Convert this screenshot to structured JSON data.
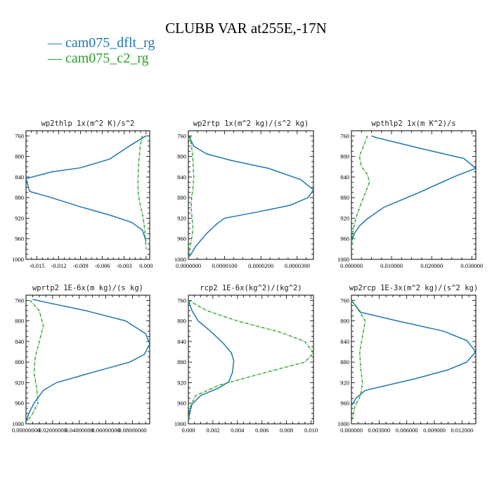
{
  "figure": {
    "title": "CLUBB VAR at255E,-17N",
    "legend": [
      {
        "label": "cam075_dflt_rg",
        "color": "#1f77b4"
      },
      {
        "label": "cam075_c2_rg",
        "color": "#2ca02c"
      }
    ]
  },
  "chart_data": [
    {
      "type": "line",
      "title": "wp2thlp  1x(m^2 K)/s^2",
      "xlim": [
        -0.0165,
        0.0005
      ],
      "ylim": [
        1000,
        750
      ],
      "y_ticks": [
        760,
        800,
        840,
        880,
        920,
        960,
        1000
      ],
      "x_ticks": [
        -0.015,
        -0.012,
        -0.009,
        -0.006,
        -0.003,
        0.0
      ],
      "x_tick_labels": [
        "-0.015",
        "-0.012",
        "-0.009",
        "-0.006",
        "-0.003",
        "0.000"
      ],
      "series": [
        {
          "color": "#1f77b4",
          "dash": false,
          "x": [
            -0.0,
            -0.002,
            -0.005,
            -0.009,
            -0.013,
            -0.0165,
            -0.016,
            -0.013,
            -0.009,
            -0.005,
            -0.002,
            -0.0005,
            0.0
          ],
          "y": [
            760,
            777,
            805,
            822,
            830,
            843,
            868,
            880,
            898,
            914,
            928,
            943,
            965
          ]
        },
        {
          "color": "#2ca02c",
          "dash": true,
          "x": [
            -0.0005,
            -0.0008,
            -0.001,
            -0.0011,
            -0.0011,
            -0.001,
            -0.0007,
            -0.0004,
            -0.0002,
            -0.0001,
            0.0
          ],
          "y": [
            760,
            780,
            810,
            840,
            860,
            880,
            900,
            920,
            940,
            960,
            980
          ]
        }
      ]
    },
    {
      "type": "line",
      "title": "wp2rtp  1x(m^2 kg)/(s^2 kg)",
      "xlim": [
        0,
        3.45e-05
      ],
      "ylim": [
        1000,
        750
      ],
      "y_ticks": [
        760,
        800,
        840,
        880,
        920,
        960,
        1000
      ],
      "x_ticks": [
        0.0,
        1e-05,
        2e-05,
        3e-05
      ],
      "x_tick_labels": [
        "0.0000000",
        "0.0000100",
        "0.0000200",
        "0.0000300"
      ],
      "series": [
        {
          "color": "#1f77b4",
          "dash": false,
          "x": [
            1e-07,
            1.5e-06,
            5e-06,
            1.2e-05,
            2.2e-05,
            3.1e-05,
            3.45e-05,
            3.3e-05,
            2.8e-05,
            1.9e-05,
            1e-05,
            8e-06,
            5e-06,
            2e-06,
            3e-07
          ],
          "y": [
            760,
            780,
            795,
            808,
            823,
            845,
            865,
            880,
            895,
            908,
            920,
            930,
            950,
            975,
            995
          ]
        },
        {
          "color": "#2ca02c",
          "dash": true,
          "x": [
            5e-07,
            1.2e-06,
            1.5e-06,
            1.3e-06,
            9e-07,
            8e-07,
            1e-06,
            1.3e-06,
            9e-07,
            4e-07,
            1e-07
          ],
          "y": [
            760,
            800,
            840,
            860,
            880,
            900,
            920,
            940,
            960,
            980,
            995
          ]
        }
      ]
    },
    {
      "type": "line",
      "title": "wpthlp2  1x(m K^2)/s",
      "xlim": [
        0,
        0.031
      ],
      "ylim": [
        1000,
        750
      ],
      "y_ticks": [
        760,
        800,
        840,
        880,
        920,
        960,
        1000
      ],
      "x_ticks": [
        0.0,
        0.01,
        0.02,
        0.03
      ],
      "x_tick_labels": [
        "0.000000",
        "0.010000",
        "0.020000",
        "0.030000"
      ],
      "series": [
        {
          "color": "#1f77b4",
          "dash": false,
          "x": [
            0.005,
            0.006,
            0.017,
            0.028,
            0.031,
            0.026,
            0.016,
            0.008,
            0.004,
            0.002,
            0.0008,
            0.0001
          ],
          "y": [
            760,
            763,
            784,
            804,
            823,
            838,
            873,
            899,
            921,
            935,
            949,
            963
          ]
        },
        {
          "color": "#2ca02c",
          "dash": true,
          "x": [
            0.004,
            0.003,
            0.002,
            0.0025,
            0.004,
            0.0045,
            0.003,
            0.0015,
            0.0008,
            0.0003,
            0.0001
          ],
          "y": [
            760,
            780,
            800,
            820,
            835,
            850,
            880,
            910,
            930,
            950,
            970
          ]
        }
      ]
    },
    {
      "type": "line",
      "title": "wprtp2  1E-6x(m kg)/(s kg)",
      "xlim": [
        0,
        0.093
      ],
      "ylim": [
        1000,
        750
      ],
      "y_ticks": [
        760,
        800,
        840,
        880,
        920,
        960,
        1000
      ],
      "x_ticks": [
        0.0,
        0.02,
        0.04,
        0.06,
        0.08
      ],
      "x_tick_labels": [
        "0.00000000",
        "0.02000000",
        "0.04000000",
        "0.06000000",
        "0.08000000"
      ],
      "series": [
        {
          "color": "#1f77b4",
          "dash": false,
          "x": [
            0.005,
            0.015,
            0.045,
            0.075,
            0.09,
            0.093,
            0.089,
            0.078,
            0.05,
            0.023,
            0.013,
            0.006,
            0.002,
            0.0003
          ],
          "y": [
            758,
            764,
            780,
            800,
            825,
            845,
            865,
            880,
            900,
            920,
            935,
            960,
            980,
            995
          ]
        },
        {
          "color": "#2ca02c",
          "dash": true,
          "x": [
            0.003,
            0.01,
            0.013,
            0.01,
            0.007,
            0.006,
            0.008,
            0.009,
            0.005,
            0.001
          ],
          "y": [
            760,
            780,
            810,
            840,
            870,
            900,
            930,
            960,
            980,
            995
          ]
        }
      ]
    },
    {
      "type": "line",
      "title": "rcp2  1E-6x(kg^2)/(kg^2)",
      "xlim": [
        0,
        0.0102
      ],
      "ylim": [
        1000,
        750
      ],
      "y_ticks": [
        760,
        800,
        840,
        880,
        920,
        960,
        1000
      ],
      "x_ticks": [
        0.0,
        0.002,
        0.004,
        0.006,
        0.008,
        0.01
      ],
      "x_tick_labels": [
        "0.000",
        "0.002",
        "0.004",
        "0.006",
        "0.008",
        "0.010"
      ],
      "series": [
        {
          "color": "#1f77b4",
          "dash": false,
          "x": [
            0.0,
            0.0003,
            0.0008,
            0.0019,
            0.0029,
            0.0035,
            0.0037,
            0.0036,
            0.0033,
            0.0025,
            0.001,
            0.0003,
            0.0001,
            0.0
          ],
          "y": [
            760,
            780,
            800,
            822,
            845,
            862,
            877,
            900,
            918,
            930,
            945,
            962,
            980,
            995
          ]
        },
        {
          "color": "#2ca02c",
          "dash": true,
          "x": [
            0.0,
            0.0015,
            0.004,
            0.0075,
            0.0095,
            0.0102,
            0.0095,
            0.006,
            0.0025,
            0.0006,
            0.0001,
            0.0
          ],
          "y": [
            760,
            780,
            800,
            822,
            840,
            862,
            880,
            902,
            925,
            945,
            970,
            995
          ]
        }
      ]
    },
    {
      "type": "line",
      "title": "wp2rcp  1E-3x(m^2 kg)/(s^2 kg)",
      "xlim": [
        0,
        0.0135
      ],
      "ylim": [
        1000,
        750
      ],
      "y_ticks": [
        760,
        800,
        840,
        880,
        920,
        960,
        1000
      ],
      "x_ticks": [
        0.0,
        0.003,
        0.006,
        0.009,
        0.012
      ],
      "x_tick_labels": [
        "0.000000",
        "0.003000",
        "0.006000",
        "0.009000",
        "0.012000"
      ],
      "series": [
        {
          "color": "#1f77b4",
          "dash": false,
          "x": [
            0.0,
            0.001,
            0.005,
            0.01,
            0.0125,
            0.0135,
            0.0125,
            0.0105,
            0.007,
            0.0015,
            0.0005,
            0.0
          ],
          "y": [
            760,
            783,
            800,
            820,
            838,
            860,
            880,
            895,
            912,
            935,
            950,
            965
          ]
        },
        {
          "color": "#2ca02c",
          "dash": true,
          "x": [
            0.0,
            0.0008,
            0.0015,
            0.0012,
            0.0009,
            0.001,
            0.0012,
            0.001,
            0.0004,
            0.0001
          ],
          "y": [
            760,
            780,
            800,
            830,
            860,
            890,
            920,
            945,
            965,
            990
          ]
        }
      ]
    }
  ]
}
